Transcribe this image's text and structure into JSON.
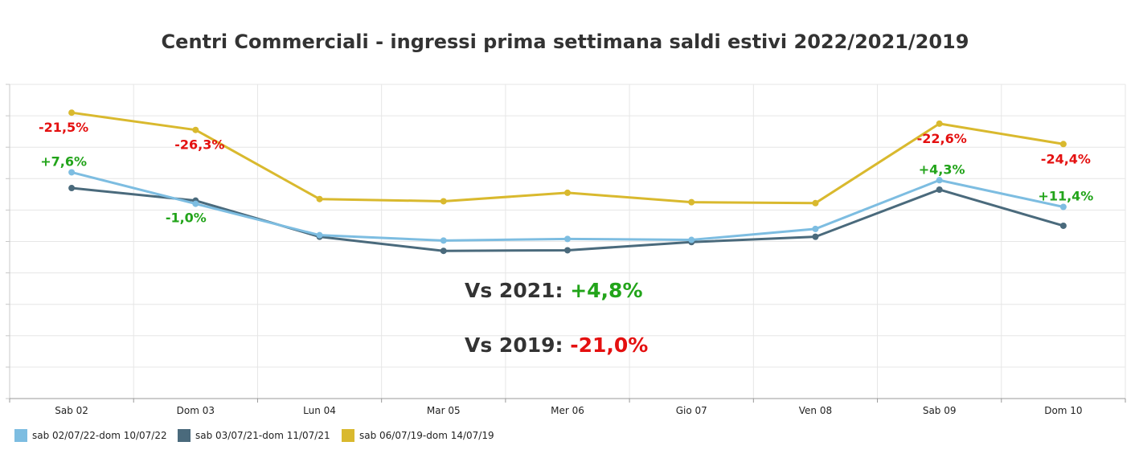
{
  "chart_data": {
    "type": "line",
    "title": "Centri Commerciali - ingressi prima settimana saldi estivi 2022/2021/2019",
    "xlabel": "",
    "ylabel": "",
    "categories": [
      "Sab 02",
      "Dom 03",
      "Lun 04",
      "Mar 05",
      "Mer 06",
      "Gio 07",
      "Ven 08",
      "Sab 09",
      "Dom 10"
    ],
    "ylim": [
      0,
      100
    ],
    "grid": true,
    "legend": "bottom-left",
    "series": [
      {
        "name": "sab 02/07/22-dom 10/07/22",
        "color": "#7dbde1",
        "values": [
          72,
          62,
          52,
          50.3,
          50.8,
          50.5,
          54,
          69.5,
          61
        ],
        "labels": [
          "+7,6%",
          "-1,0%",
          "",
          "",
          "",
          "",
          "",
          "+4,3%",
          "+11,4%"
        ],
        "label_color": "#22a41a"
      },
      {
        "name": "sab 03/07/21-dom 11/07/21",
        "color": "#4a6a7c",
        "values": [
          67,
          63,
          51.5,
          47,
          47.2,
          49.8,
          51.5,
          66.5,
          55
        ],
        "labels": [
          "",
          "",
          "",
          "",
          "",
          "",
          "",
          "",
          ""
        ],
        "label_color": "#e41010"
      },
      {
        "name": "sab 06/07/19-dom 14/07/19",
        "color": "#d9b92e",
        "values": [
          91,
          85.5,
          63.5,
          62.8,
          65.5,
          62.5,
          62.2,
          87.5,
          81
        ],
        "labels": [
          "-21,5%",
          "-26,3%",
          "",
          "",
          "",
          "",
          "",
          "-22,6%",
          "-24,4%"
        ],
        "label_color": "#e41010"
      }
    ],
    "annotations": [
      {
        "label": "Vs 2021:",
        "value": "+4,8%",
        "value_color": "#22a41a"
      },
      {
        "label": "Vs 2019:",
        "value": "-21,0%",
        "value_color": "#e41010"
      }
    ]
  }
}
